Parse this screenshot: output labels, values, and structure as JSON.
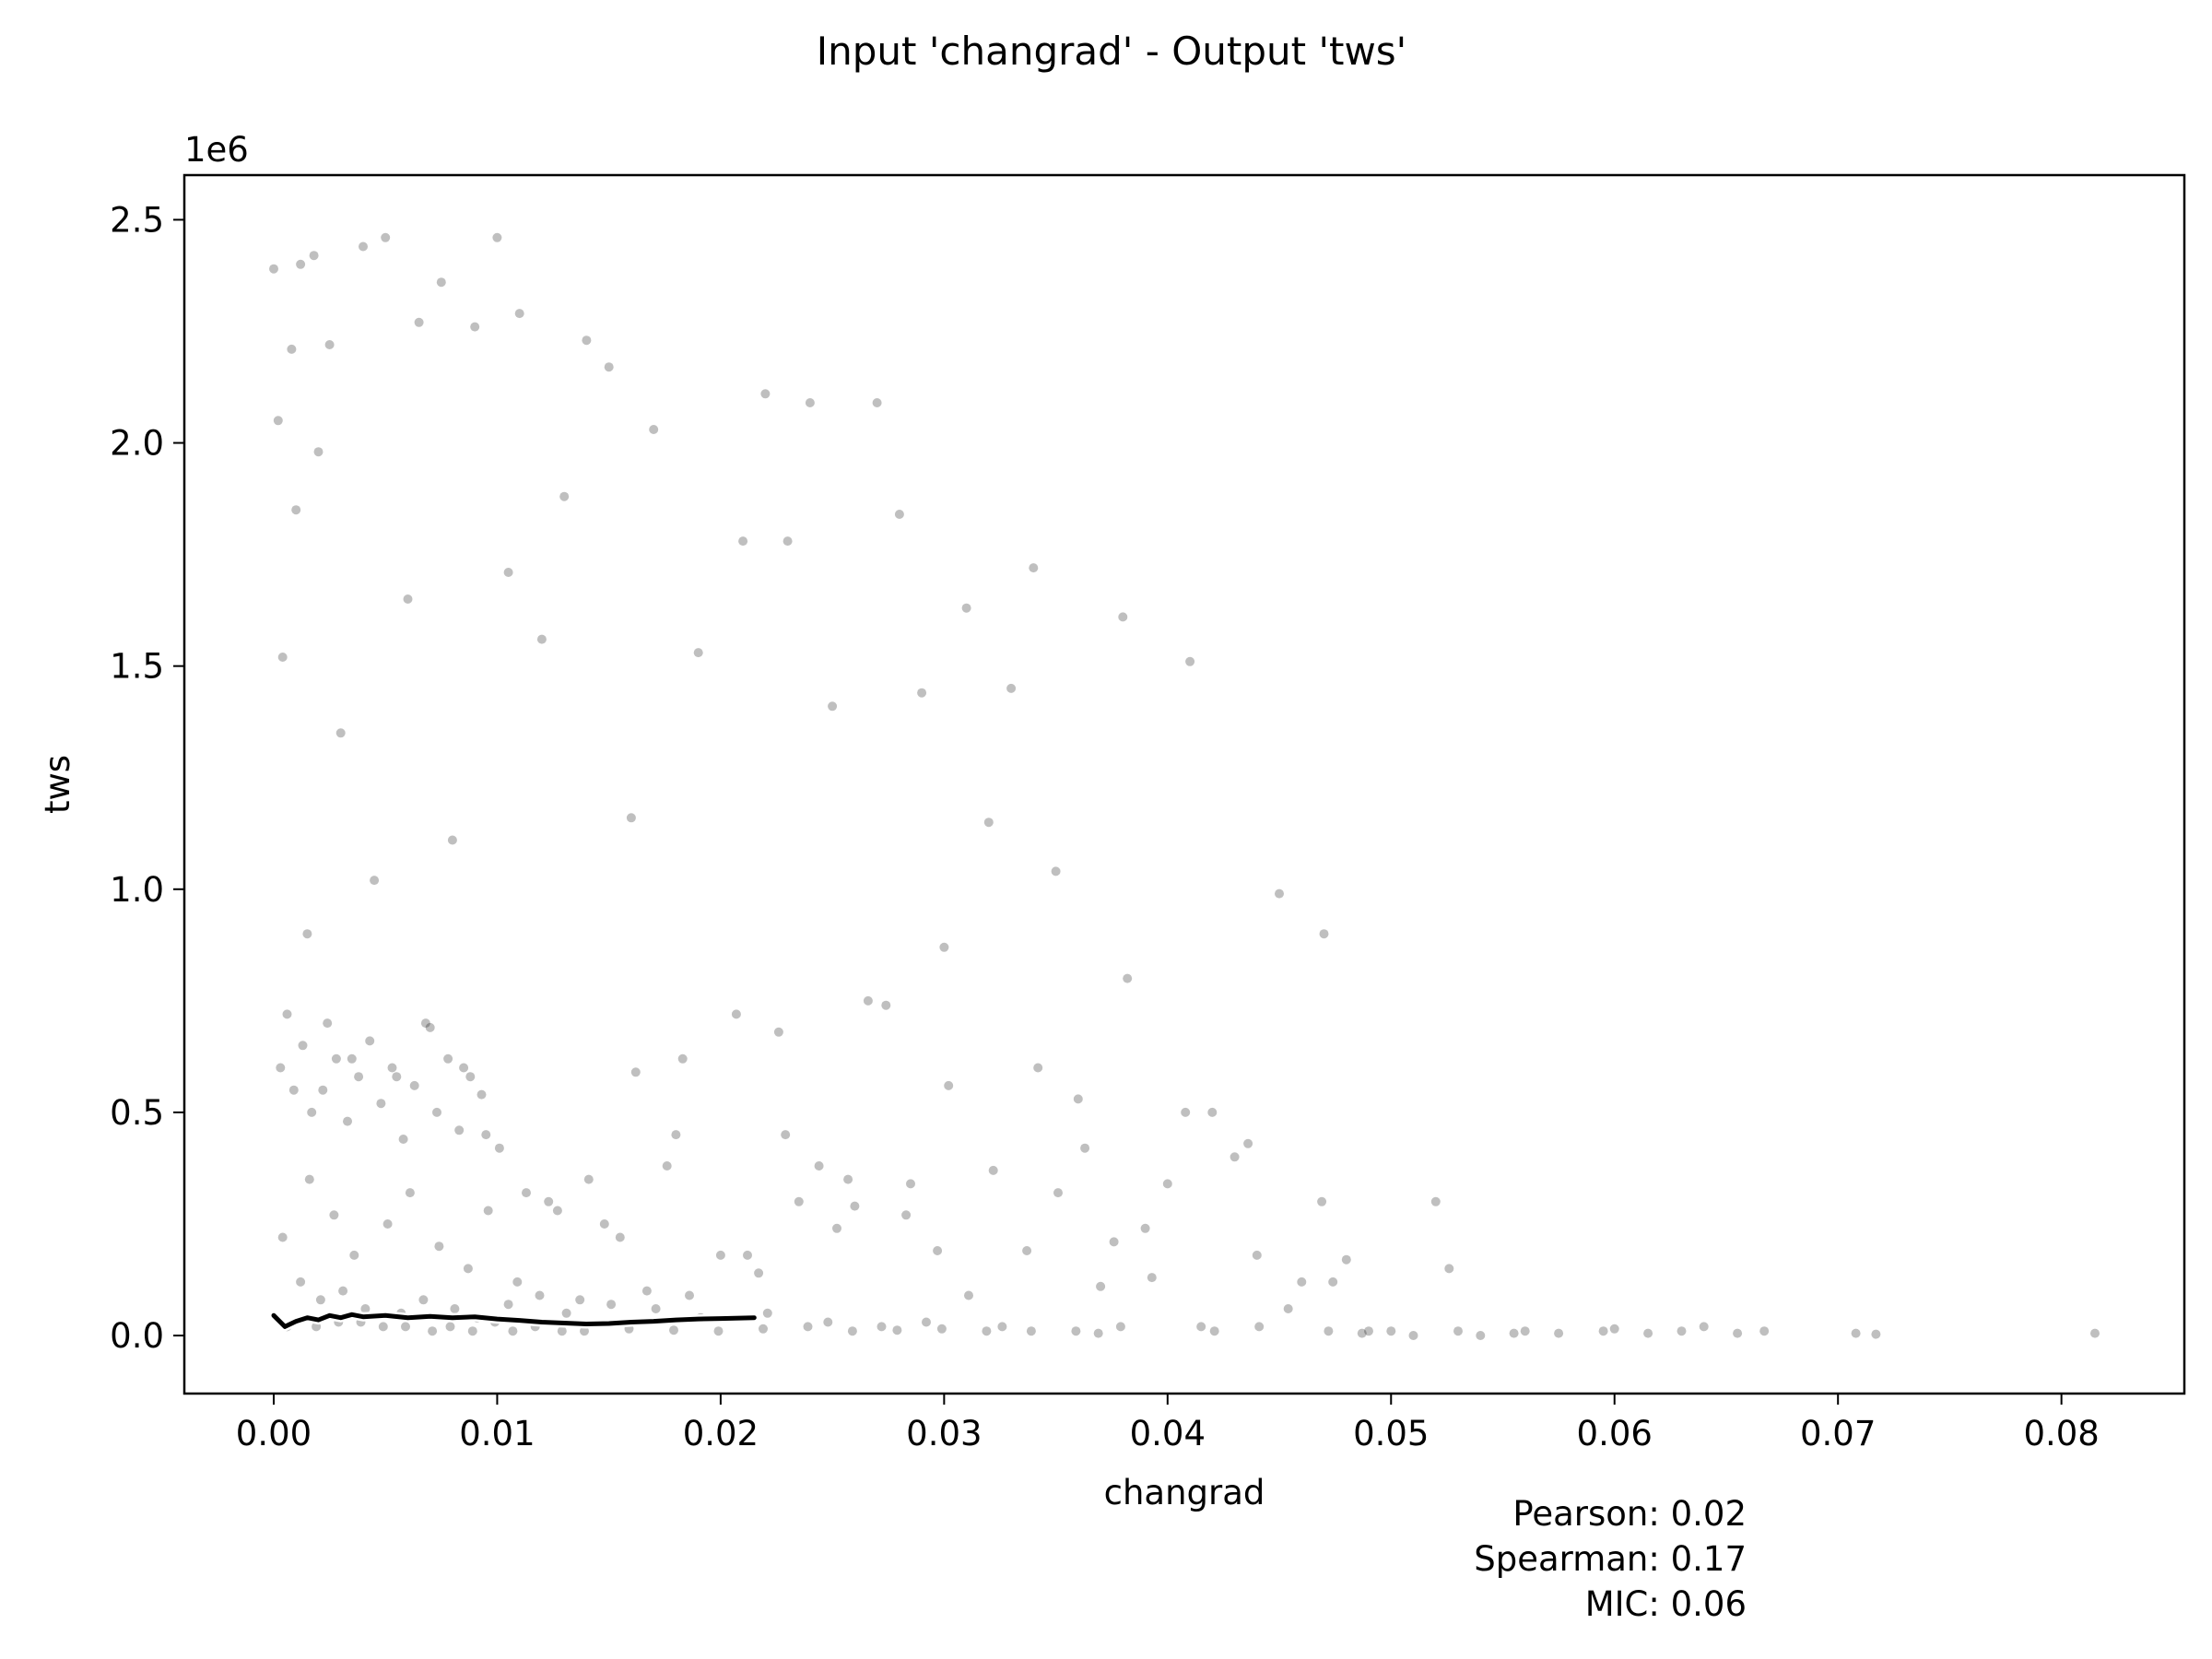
{
  "chart_data": {
    "type": "scatter",
    "title": "Input 'changrad' - Output 'tws'",
    "xlabel": "changrad",
    "ylabel": "tws",
    "y_offset_label": "1e6",
    "xlim": [
      -0.004,
      0.0855
    ],
    "ylim": [
      -0.13,
      2.6
    ],
    "x_ticks": [
      0.0,
      0.01,
      0.02,
      0.03,
      0.04,
      0.05,
      0.06,
      0.07,
      0.08
    ],
    "x_tick_labels": [
      "0.00",
      "0.01",
      "0.02",
      "0.03",
      "0.04",
      "0.05",
      "0.06",
      "0.07",
      "0.08"
    ],
    "y_ticks": [
      0.0,
      0.5,
      1.0,
      1.5,
      2.0,
      2.5
    ],
    "y_tick_labels": [
      "0.0",
      "0.5",
      "1.0",
      "1.5",
      "2.0",
      "2.5"
    ],
    "y_units_multiplier": 1000000,
    "grid": false,
    "point_color": "#000000",
    "point_opacity": 0.25,
    "trend_line_color": "#000000",
    "trend_line_outline_color": "#ffffff",
    "trend_line": {
      "x": [
        0.0,
        0.0005,
        0.001,
        0.0015,
        0.002,
        0.0025,
        0.003,
        0.0035,
        0.004,
        0.005,
        0.006,
        0.007,
        0.008,
        0.009,
        0.01,
        0.011,
        0.012,
        0.013,
        0.014,
        0.015,
        0.016,
        0.017,
        0.018,
        0.019,
        0.02,
        0.0215
      ],
      "y": [
        0.045,
        0.02,
        0.032,
        0.04,
        0.035,
        0.045,
        0.04,
        0.047,
        0.042,
        0.045,
        0.04,
        0.043,
        0.04,
        0.042,
        0.037,
        0.034,
        0.03,
        0.028,
        0.026,
        0.027,
        0.03,
        0.032,
        0.035,
        0.037,
        0.038,
        0.04
      ]
    },
    "points": {
      "x": [
        0.0,
        0.0002,
        0.0004,
        0.0006,
        0.0008,
        0.001,
        0.0012,
        0.0015,
        0.0018,
        0.002,
        0.0022,
        0.0025,
        0.003,
        0.0035,
        0.004,
        0.0045,
        0.005,
        0.0055,
        0.006,
        0.0065,
        0.007,
        0.0075,
        0.008,
        0.0085,
        0.009,
        0.0095,
        0.01,
        0.0105,
        0.011,
        0.012,
        0.013,
        0.014,
        0.015,
        0.016,
        0.017,
        0.018,
        0.019,
        0.02,
        0.021,
        0.022,
        0.023,
        0.024,
        0.025,
        0.026,
        0.027,
        0.028,
        0.029,
        0.03,
        0.031,
        0.032,
        0.033,
        0.034,
        0.035,
        0.036,
        0.037,
        0.038,
        0.039,
        0.04,
        0.041,
        0.042,
        0.043,
        0.044,
        0.045,
        0.046,
        0.047,
        0.048,
        0.049,
        0.05,
        0.051,
        0.052,
        0.053,
        0.054,
        0.0555,
        0.056,
        0.0575,
        0.0595,
        0.06,
        0.0615,
        0.063,
        0.064,
        0.0655,
        0.0667,
        0.0708,
        0.0717,
        0.0815,
        0.0003,
        0.0009,
        0.0013,
        0.0017,
        0.0024,
        0.0028,
        0.0033,
        0.0038,
        0.0043,
        0.0048,
        0.0053,
        0.0058,
        0.0063,
        0.0068,
        0.0073,
        0.0078,
        0.0083,
        0.0088,
        0.0093,
        0.0101,
        0.0113,
        0.0127,
        0.0141,
        0.0155,
        0.0162,
        0.0176,
        0.0183,
        0.0207,
        0.0217,
        0.0226,
        0.0235,
        0.0244,
        0.0257,
        0.0266,
        0.0274,
        0.0283,
        0.0297,
        0.0302,
        0.0322,
        0.0337,
        0.0351,
        0.0376,
        0.0393,
        0.0415,
        0.0454,
        0.0474,
        0.0004,
        0.0016,
        0.0027,
        0.0036,
        0.0051,
        0.0061,
        0.0074,
        0.0087,
        0.0096,
        0.0109,
        0.0123,
        0.0137,
        0.0148,
        0.0167,
        0.0186,
        0.0212,
        0.0229,
        0.0252,
        0.0285,
        0.0311,
        0.0342,
        0.0363,
        0.0382,
        0.0408,
        0.0436,
        0.0469,
        0.0526,
        0.0012,
        0.0021,
        0.0031,
        0.0041,
        0.0057,
        0.0067,
        0.0081,
        0.0091,
        0.0105,
        0.0119,
        0.0131,
        0.0151,
        0.0171,
        0.0191,
        0.0221,
        0.0248,
        0.0272,
        0.0292,
        0.0326,
        0.0359,
        0.0379,
        0.0421,
        0.0441,
        0.0472,
        0.0487,
        0.0006,
        0.0019,
        0.0029,
        0.0039,
        0.0049,
        0.0059,
        0.0071,
        0.0079,
        0.0089,
        0.0099,
        0.0107,
        0.0117,
        0.0129,
        0.0139,
        0.0159,
        0.0179,
        0.0199,
        0.0219,
        0.0239,
        0.0259,
        0.0279,
        0.0299,
        0.0319,
        0.0339,
        0.0369
      ],
      "y": [
        2.39,
        2.05,
        1.52,
        0.72,
        2.21,
        1.85,
        2.4,
        0.9,
        2.42,
        1.98,
        0.55,
        2.22,
        1.35,
        0.62,
        2.44,
        1.02,
        2.46,
        0.58,
        1.65,
        2.27,
        0.69,
        2.36,
        1.11,
        0.6,
        2.26,
        0.45,
        2.46,
        1.71,
        2.29,
        1.56,
        1.88,
        2.23,
        2.17,
        1.16,
        2.03,
        0.45,
        1.53,
        0.18,
        1.78,
        2.11,
        1.78,
        2.09,
        1.41,
        0.29,
        2.09,
        1.84,
        1.44,
        0.87,
        1.63,
        1.15,
        1.45,
        1.72,
        1.04,
        0.53,
        0.11,
        1.61,
        0.24,
        0.34,
        1.51,
        0.5,
        0.4,
        0.18,
        0.99,
        0.12,
        0.9,
        0.17,
        0.01,
        0.01,
        0.0,
        0.3,
        0.01,
        0.0,
        0.005,
        0.01,
        0.005,
        0.01,
        0.015,
        0.005,
        0.01,
        0.02,
        0.005,
        0.01,
        0.005,
        0.003,
        0.005,
        0.6,
        0.55,
        0.65,
        0.5,
        0.7,
        0.62,
        0.48,
        0.58,
        0.66,
        0.52,
        0.6,
        0.44,
        0.56,
        0.7,
        0.5,
        0.62,
        0.46,
        0.58,
        0.54,
        0.42,
        0.32,
        0.28,
        0.35,
        0.22,
        0.59,
        0.38,
        0.62,
        0.72,
        0.14,
        0.68,
        0.3,
        0.38,
        0.35,
        0.75,
        0.74,
        0.27,
        0.19,
        0.56,
        0.37,
        0.19,
        0.32,
        0.21,
        0.13,
        0.02,
        0.06,
        0.12,
        0.22,
        0.35,
        0.27,
        0.18,
        0.25,
        0.32,
        0.2,
        0.15,
        0.28,
        0.12,
        0.3,
        0.08,
        0.25,
        0.1,
        0.09,
        0.18,
        0.45,
        0.24,
        0.34,
        0.09,
        0.6,
        0.42,
        0.8,
        0.5,
        0.43,
        0.3,
        0.15,
        0.12,
        0.08,
        0.1,
        0.06,
        0.05,
        0.08,
        0.06,
        0.04,
        0.07,
        0.09,
        0.05,
        0.07,
        0.06,
        0.04,
        0.05,
        0.03,
        0.02,
        0.03,
        0.02,
        0.01,
        0.02,
        0.01,
        0.02,
        0.01,
        0.005,
        0.02,
        0.02,
        0.03,
        0.03,
        0.02,
        0.02,
        0.01,
        0.02,
        0.01,
        0.03,
        0.01,
        0.02,
        0.01,
        0.01,
        0.015,
        0.012,
        0.01,
        0.015,
        0.02,
        0.01,
        0.012,
        0.015,
        0.01,
        0.01,
        0.005
      ]
    }
  },
  "stats": {
    "pearson": "Pearson: 0.02",
    "spearman": "Spearman: 0.17",
    "mic": "MIC: 0.06"
  }
}
